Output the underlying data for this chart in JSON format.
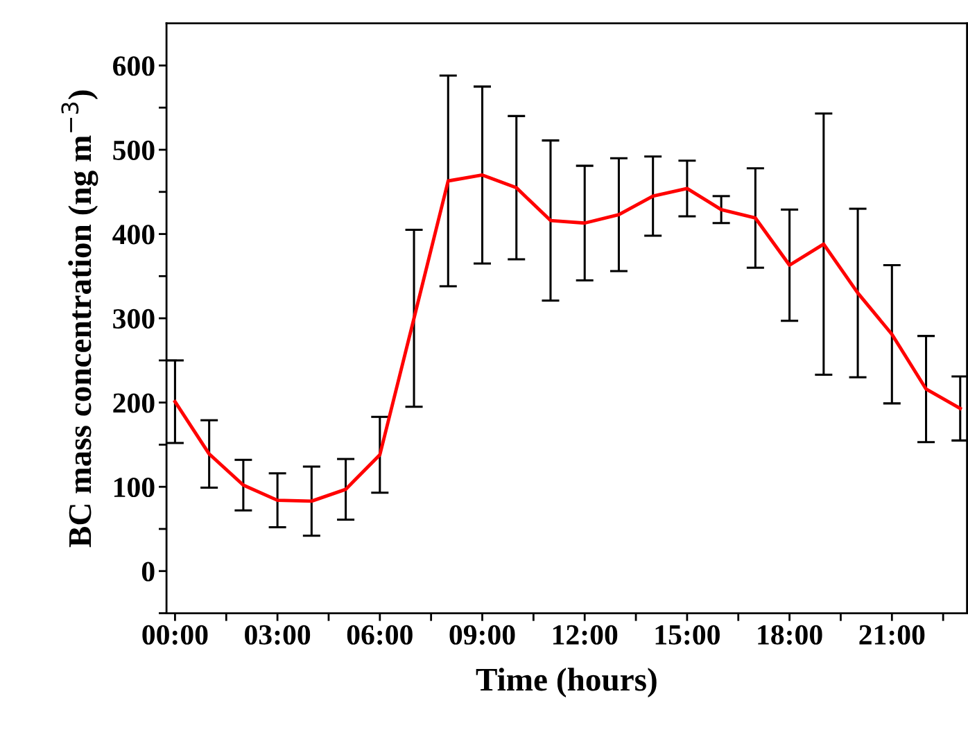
{
  "chart_data": {
    "type": "line",
    "xlabel": "Time (hours)",
    "ylabel": "BC mass concentration (ng m$^{−3}$)",
    "x": [
      0,
      1,
      2,
      3,
      4,
      5,
      6,
      7,
      8,
      9,
      10,
      11,
      12,
      13,
      14,
      15,
      16,
      17,
      18,
      19,
      20,
      21,
      22,
      23
    ],
    "series": [
      {
        "color": "#ff0000",
        "values": [
          201,
          139,
          102,
          84,
          83,
          97,
          138,
          300,
          463,
          470,
          455,
          416,
          413,
          423,
          445,
          454,
          429,
          419,
          363,
          388,
          330,
          281,
          216,
          193
        ],
        "errors": [
          49,
          40,
          30,
          32,
          41,
          36,
          45,
          105,
          125,
          105,
          85,
          95,
          68,
          67,
          47,
          33,
          16,
          59,
          66,
          155,
          100,
          82,
          63,
          38
        ]
      }
    ],
    "xlim": [
      -0.25,
      23.2
    ],
    "ylim": [
      -50,
      650
    ],
    "xticks": [
      {
        "value": 0,
        "label": "00:00"
      },
      {
        "value": 1.5,
        "label": null
      },
      {
        "value": 3,
        "label": "03:00"
      },
      {
        "value": 4.5,
        "label": null
      },
      {
        "value": 6,
        "label": "06:00"
      },
      {
        "value": 7.5,
        "label": null
      },
      {
        "value": 9,
        "label": "09:00"
      },
      {
        "value": 10.5,
        "label": null
      },
      {
        "value": 12,
        "label": "12:00"
      },
      {
        "value": 13.5,
        "label": null
      },
      {
        "value": 15,
        "label": "15:00"
      },
      {
        "value": 16.5,
        "label": null
      },
      {
        "value": 18,
        "label": "18:00"
      },
      {
        "value": 19.5,
        "label": null
      },
      {
        "value": 21,
        "label": "21:00"
      },
      {
        "value": 22.5,
        "label": null
      }
    ],
    "yticks": [
      {
        "value": -50,
        "label": null
      },
      0,
      {
        "value": 50,
        "label": null
      },
      100,
      {
        "value": 150,
        "label": null
      },
      200,
      {
        "value": 250,
        "label": null
      },
      300,
      {
        "value": 350,
        "label": null
      },
      400,
      {
        "value": 450,
        "label": null
      },
      500,
      {
        "value": 550,
        "label": null
      },
      600
    ],
    "grid": false,
    "legend": false,
    "marker": "none",
    "line_style": "solid"
  }
}
